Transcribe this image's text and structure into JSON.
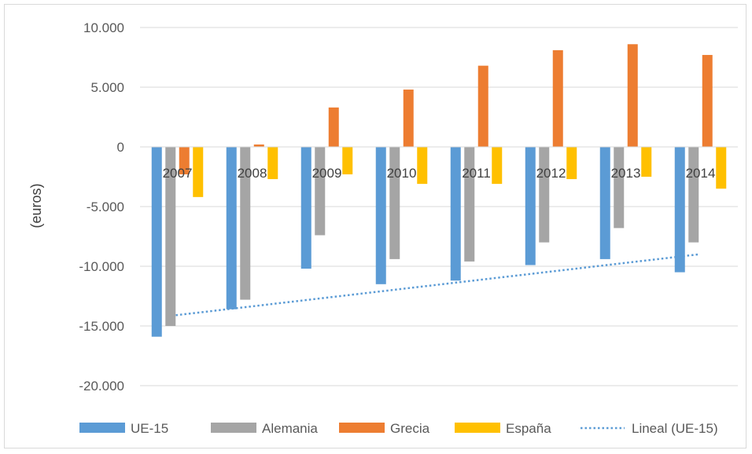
{
  "chart_data": {
    "type": "bar",
    "title": "",
    "xlabel": "",
    "ylabel": "(euros)",
    "ylim": [
      -20000,
      10000
    ],
    "yticks": [
      10000,
      5000,
      0,
      -5000,
      -10000,
      -15000,
      -20000
    ],
    "ytick_labels": [
      "10.000",
      "5.000",
      "0",
      "-5.000",
      "-10.000",
      "-15.000",
      "-20.000"
    ],
    "grid": true,
    "legend_position": "bottom",
    "categories": [
      "2007",
      "2008",
      "2009",
      "2010",
      "2011",
      "2012",
      "2013",
      "2014"
    ],
    "series": [
      {
        "name": "UE-15",
        "color": "#5b9bd5",
        "values": [
          -15900,
          -13600,
          -10200,
          -11500,
          -11200,
          -9900,
          -9400,
          -10500
        ]
      },
      {
        "name": "Alemania",
        "color": "#a5a5a5",
        "values": [
          -15000,
          -12800,
          -7400,
          -9400,
          -9600,
          -8000,
          -6800,
          -8000
        ]
      },
      {
        "name": "Grecia",
        "color": "#ed7d31",
        "values": [
          -2300,
          200,
          3300,
          4800,
          6800,
          8100,
          8600,
          7700
        ]
      },
      {
        "name": "España",
        "color": "#ffc000",
        "values": [
          -4200,
          -2700,
          -2300,
          -3100,
          -3100,
          -2700,
          -2500,
          -3500
        ]
      }
    ],
    "trendline": {
      "name": "Lineal (UE-15)",
      "of_series": "UE-15",
      "type": "linear",
      "color": "#5b9bd5",
      "start": -14100,
      "end": -9000
    }
  }
}
